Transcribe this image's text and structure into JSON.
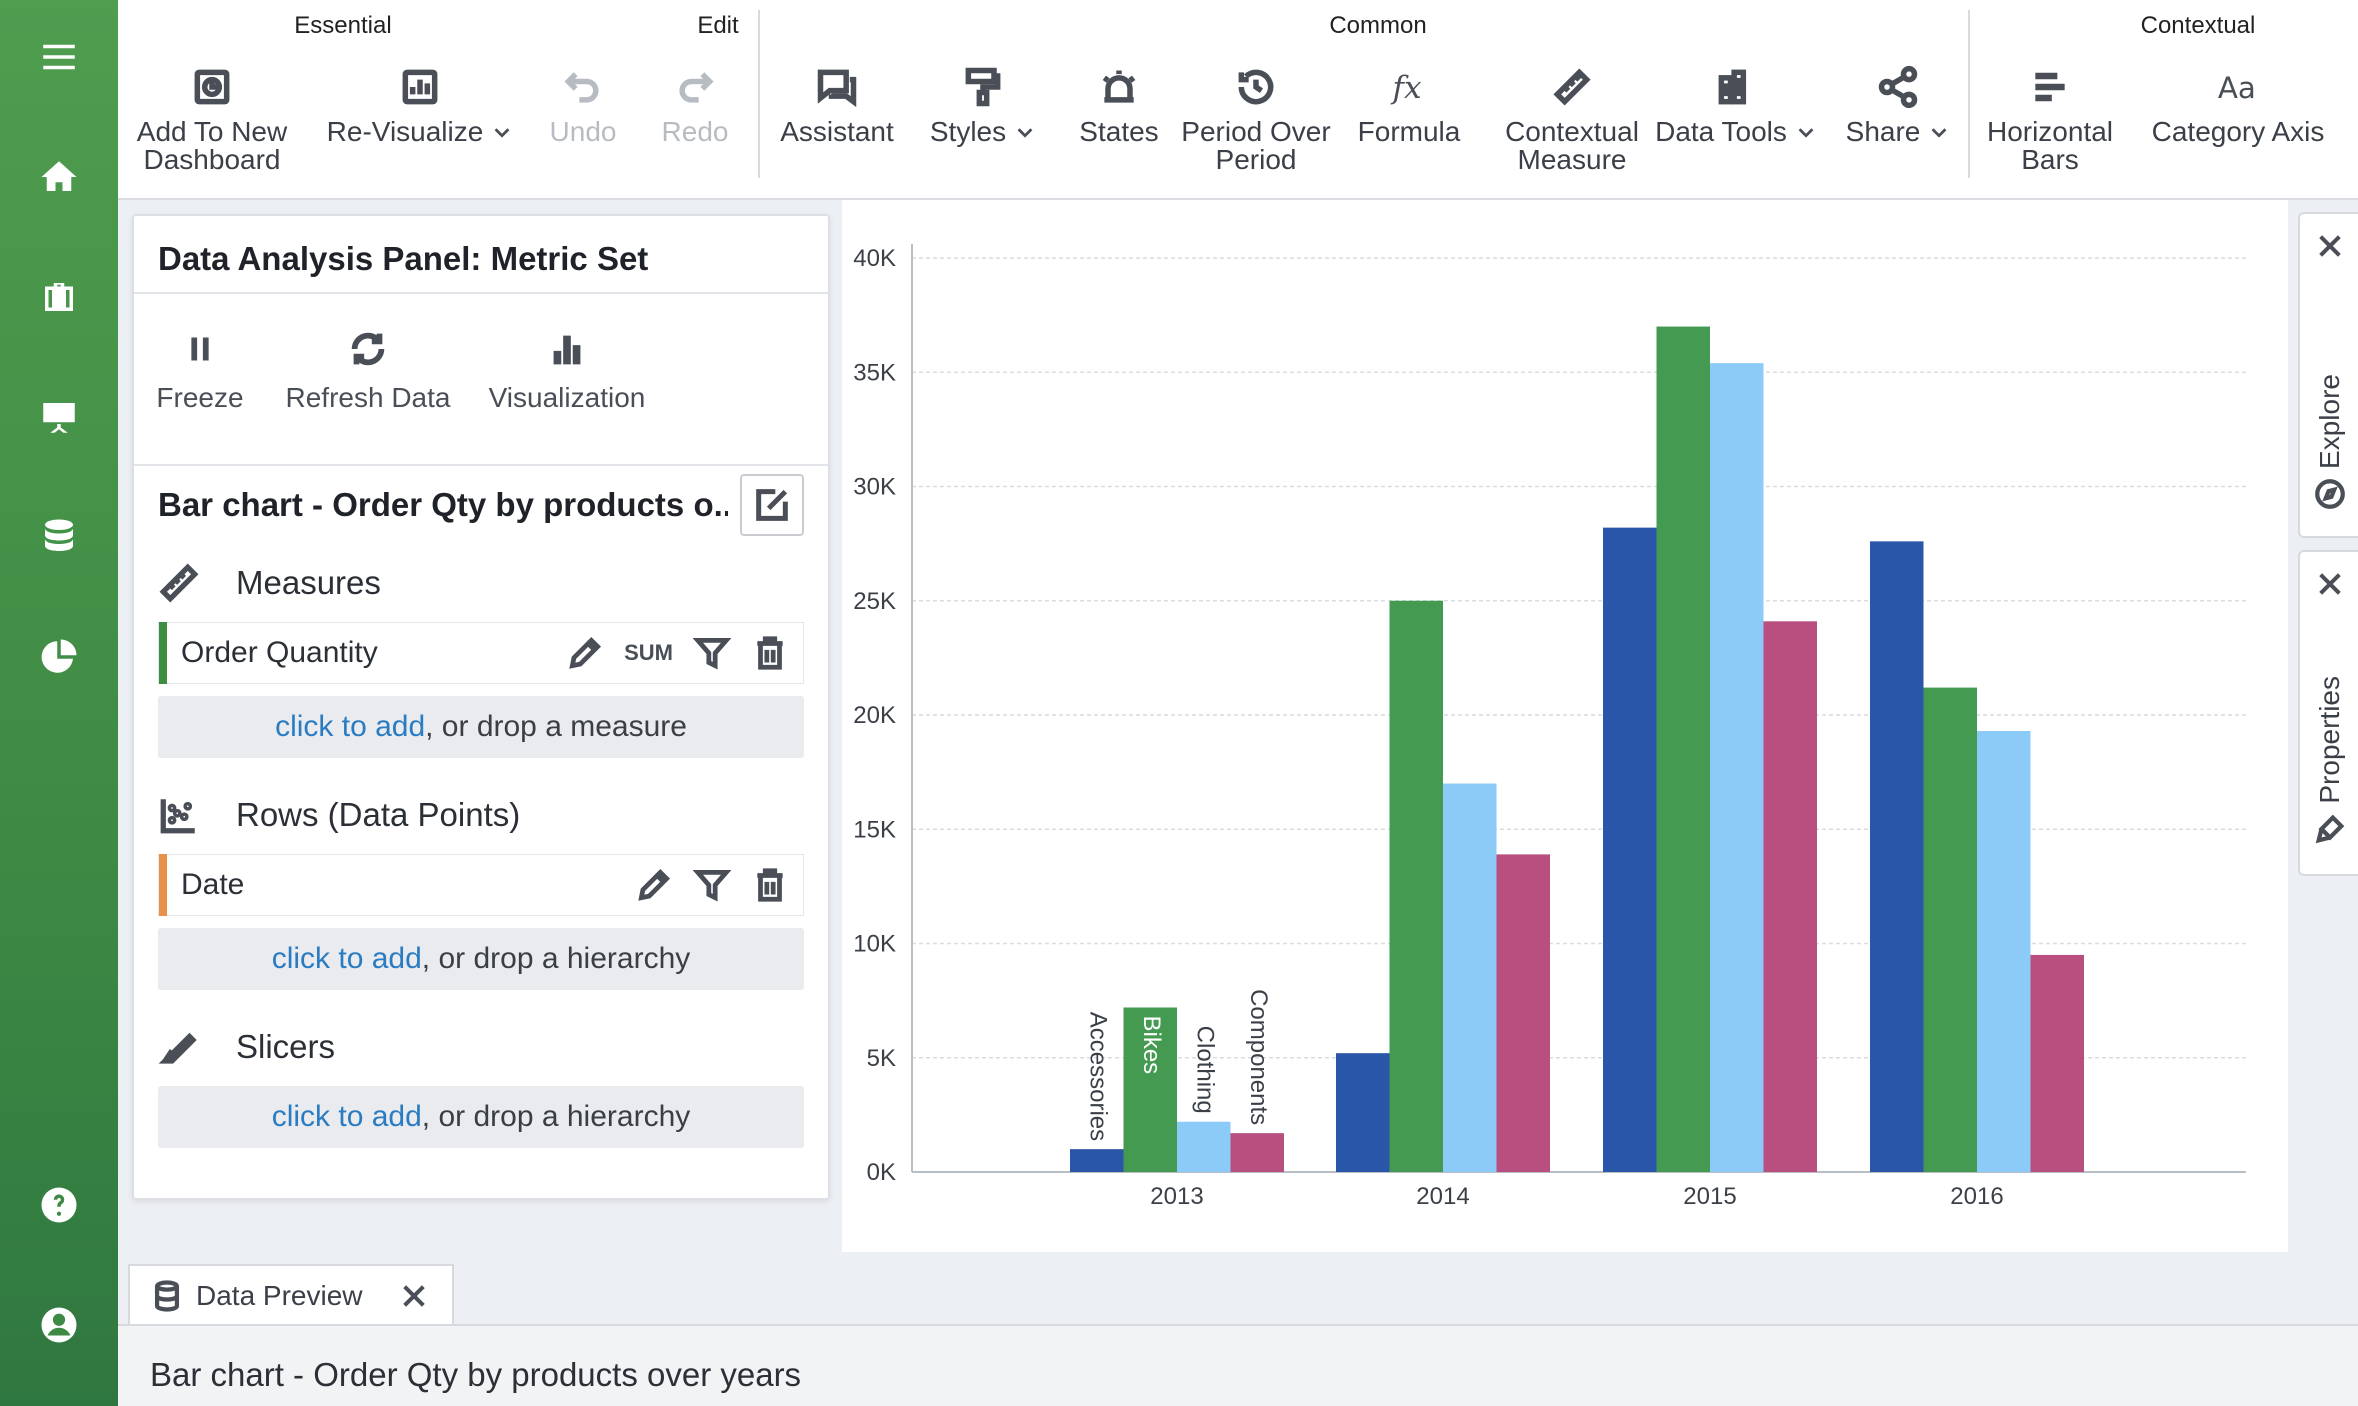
{
  "toolbar": {
    "groups": [
      "Essential",
      "Edit",
      "Common",
      "Contextual"
    ],
    "buttons": {
      "add_to_dashboard": [
        "Add To New",
        "Dashboard"
      ],
      "revisualize": "Re-Visualize",
      "undo": "Undo",
      "redo": "Redo",
      "assistant": "Assistant",
      "styles": "Styles",
      "states": "States",
      "period_over_period": [
        "Period Over",
        "Period"
      ],
      "formula": "Formula",
      "contextual_measure": [
        "Contextual",
        "Measure"
      ],
      "data_tools": "Data Tools",
      "share": "Share",
      "horizontal_bars": [
        "Horizontal",
        "Bars"
      ],
      "category_axis": "Category Axis"
    }
  },
  "panel": {
    "title": "Data Analysis Panel: Metric Set",
    "actions": [
      "Freeze",
      "Refresh Data",
      "Visualization"
    ],
    "chart_name": "Bar chart - Order Qty by products o...",
    "measures": {
      "label": "Measures",
      "field": "Order Quantity",
      "aggregation": "SUM",
      "drop_link": "click to add",
      "drop_text": ", or drop a measure",
      "accent": "#3e8e41"
    },
    "rows": {
      "label": "Rows (Data Points)",
      "field": "Date",
      "drop_link": "click to add",
      "drop_text": ", or drop a hierarchy",
      "accent": "#e8914a"
    },
    "slicers": {
      "label": "Slicers",
      "drop_link": "click to add",
      "drop_text": ", or drop a hierarchy"
    }
  },
  "side_tabs": [
    "Explore",
    "Properties"
  ],
  "bottom": {
    "preview_tab": "Data Preview",
    "status": "Bar chart - Order Qty by products over years"
  },
  "chart_data": {
    "type": "bar",
    "categories": [
      "2013",
      "2014",
      "2015",
      "2016"
    ],
    "series": [
      {
        "name": "Accessories",
        "color": "#2a56a9",
        "values": [
          1000,
          5200,
          28200,
          27600
        ]
      },
      {
        "name": "Bikes",
        "color": "#459a52",
        "values": [
          7200,
          25000,
          37000,
          21200
        ]
      },
      {
        "name": "Clothing",
        "color": "#8ccbf7",
        "values": [
          2200,
          17000,
          35400,
          19300
        ]
      },
      {
        "name": "Components",
        "color": "#b84f7f",
        "values": [
          1700,
          13900,
          24100,
          9500
        ]
      }
    ],
    "ylim": [
      0,
      40000
    ],
    "yticks": [
      "0K",
      "5K",
      "10K",
      "15K",
      "20K",
      "25K",
      "30K",
      "35K",
      "40K"
    ],
    "grid": true,
    "series_labels_on_first_category": true
  }
}
